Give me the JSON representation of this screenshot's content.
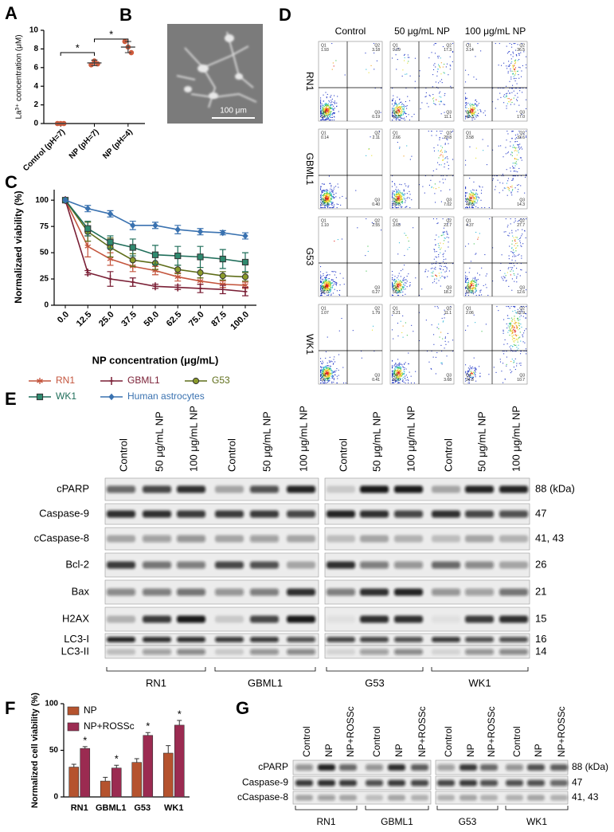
{
  "panel_labels": [
    "A",
    "B",
    "C",
    "D",
    "E",
    "F",
    "G"
  ],
  "chart_data": [
    {
      "type": "dot",
      "ylabel": "La³⁺ concentration (μM)",
      "categories": [
        "Control (pH=7)",
        "NP (pH=7)",
        "NP (pH=4)"
      ],
      "values": [
        0,
        6.5,
        8.2
      ],
      "errors": [
        0,
        0.3,
        0.6
      ],
      "points": [
        [
          0,
          0,
          0
        ],
        [
          6.3,
          6.7,
          6.4
        ],
        [
          8.8,
          8.2,
          7.6
        ]
      ],
      "color": "#cf5b3c",
      "ylim": [
        0,
        10
      ],
      "yticks": [
        0,
        2,
        4,
        6,
        8,
        10
      ],
      "annotations": [
        "*",
        "*"
      ]
    },
    {
      "type": "line",
      "ylabel": "Normalizaed viability (%)",
      "xlabel": "NP concentration (μg/mL)",
      "categories": [
        "0.0",
        "12.5",
        "25.0",
        "37.5",
        "50.0",
        "62.5",
        "75.0",
        "87.5",
        "100.0"
      ],
      "ylim": [
        0,
        110
      ],
      "yticks": [
        0,
        25,
        50,
        75,
        100
      ],
      "series": [
        {
          "name": "RN1",
          "color": "#c4553d",
          "marker": "star",
          "values": [
            100,
            56,
            44,
            37,
            33,
            27,
            23,
            20,
            19
          ],
          "errors": [
            0,
            10,
            6,
            5,
            4,
            4,
            3,
            3,
            3
          ]
        },
        {
          "name": "GBML1",
          "color": "#7a1f35",
          "marker": "cross",
          "values": [
            100,
            31,
            25,
            22,
            18,
            17,
            16,
            15,
            13
          ],
          "errors": [
            0,
            2,
            7,
            4,
            2,
            2,
            4,
            4,
            4
          ]
        },
        {
          "name": "G53",
          "color": "#5f6e1a",
          "marker": "circle",
          "values": [
            100,
            70,
            55,
            43,
            40,
            34,
            31,
            28,
            27
          ],
          "errors": [
            0,
            9,
            9,
            6,
            6,
            4,
            5,
            4,
            4
          ]
        },
        {
          "name": "WK1",
          "color": "#1f6e5a",
          "marker": "square",
          "values": [
            100,
            73,
            60,
            55,
            48,
            47,
            46,
            44,
            41
          ],
          "errors": [
            0,
            7,
            6,
            8,
            9,
            9,
            10,
            9,
            9
          ]
        },
        {
          "name": "Human astrocytes",
          "color": "#3a72b0",
          "marker": "diamond",
          "values": [
            100,
            92,
            87,
            76,
            76,
            72,
            70,
            69,
            66
          ],
          "errors": [
            0,
            3,
            3,
            4,
            3,
            4,
            3,
            2,
            3
          ]
        }
      ]
    },
    {
      "type": "bar",
      "ylabel": "Normalized cell viability (%)",
      "categories": [
        "RN1",
        "GBML1",
        "G53",
        "WK1"
      ],
      "ylim": [
        0,
        100
      ],
      "yticks": [
        0,
        50,
        100
      ],
      "series": [
        {
          "name": "NP",
          "color": "#b5532e",
          "values": [
            32,
            17,
            37,
            47
          ],
          "errors": [
            3,
            4,
            4,
            8
          ]
        },
        {
          "name": "NP+ROSSc",
          "color": "#9b2b51",
          "values": [
            52,
            31,
            66,
            77
          ],
          "errors": [
            2,
            3,
            3,
            5
          ]
        }
      ],
      "annotations": [
        "*",
        "*",
        "*",
        "*"
      ]
    }
  ],
  "micrograph": {
    "scale_bar": "100 μm"
  },
  "flow": {
    "columns": [
      "Control",
      "50 μg/mL NP",
      "100 μg/mL NP"
    ],
    "quadrant_labels": {
      "q1": "Q1",
      "q2": "Q2",
      "q3": "Q3",
      "q4": "Q4"
    },
    "rows": [
      {
        "name": "RN1",
        "plots": [
          {
            "q1": "1.93",
            "q2": "3.18",
            "q3": "0.19",
            "q4": "94.7"
          },
          {
            "q1": "9.09",
            "q2": "17.3",
            "q3": "11.1",
            "q4": "62.5"
          },
          {
            "q1": "3.14",
            "q2": "36.5",
            "q3": "17.0",
            "q4": "43.3"
          }
        ]
      },
      {
        "name": "GBML1",
        "plots": [
          {
            "q1": "0.14",
            "q2": "2.11",
            "q3": "0.40",
            "q4": "97.4"
          },
          {
            "q1": "2.66",
            "q2": "20.8",
            "q3": "7.02",
            "q4": "69.5"
          },
          {
            "q1": "3.58",
            "q2": "33.6",
            "q3": "14.3",
            "q4": "48.8"
          }
        ]
      },
      {
        "name": "G53",
        "plots": [
          {
            "q1": "1.10",
            "q2": "2.55",
            "q3": "0.27",
            "q4": "96.0"
          },
          {
            "q1": "3.65",
            "q2": "21.7",
            "q3": "18.2",
            "q4": "56.3"
          },
          {
            "q1": "4.37",
            "q2": "27.7",
            "q3": "12.6",
            "q4": "55.3"
          }
        ]
      },
      {
        "name": "WK1",
        "plots": [
          {
            "q1": "1.07",
            "q2": "1.79",
            "q3": "0.41",
            "q4": "96.7"
          },
          {
            "q1": "5.21",
            "q2": "11.1",
            "q3": "3.68",
            "q4": "80.0"
          },
          {
            "q1": "2.06",
            "q2": "62.9",
            "q3": "10.7",
            "q4": "24.3"
          }
        ]
      }
    ]
  },
  "blot_e": {
    "lanes": [
      "Control",
      "50 μg/mL NP",
      "100 μg/mL NP",
      "Control",
      "50 μg/mL NP",
      "100 μg/mL NP",
      "Control",
      "50 μg/mL NP",
      "100 μg/mL NP",
      "Control",
      "50 μg/mL NP",
      "100 μg/mL NP"
    ],
    "rows": [
      "cPARP",
      "Caspase-9",
      "cCaspase-8",
      "Bcl-2",
      "Bax",
      "H2AX",
      "LC3-I",
      "LC3-II"
    ],
    "kda": [
      "88 (kDa)",
      "47",
      "41, 43",
      "26",
      "21",
      "15",
      "16",
      "14"
    ],
    "groups": [
      "RN1",
      "GBML1",
      "G53",
      "WK1"
    ]
  },
  "blot_g": {
    "lanes": [
      "Control",
      "NP",
      "NP+ROSSc",
      "Control",
      "NP",
      "NP+ROSSc",
      "Control",
      "NP",
      "NP+ROSSc",
      "Control",
      "NP",
      "NP+ROSSc"
    ],
    "rows": [
      "cPARP",
      "Caspase-9",
      "cCaspase-8"
    ],
    "kda": [
      "88 (kDa)",
      "47",
      "41, 43"
    ],
    "groups": [
      "RN1",
      "GBML1",
      "G53",
      "WK1"
    ]
  }
}
